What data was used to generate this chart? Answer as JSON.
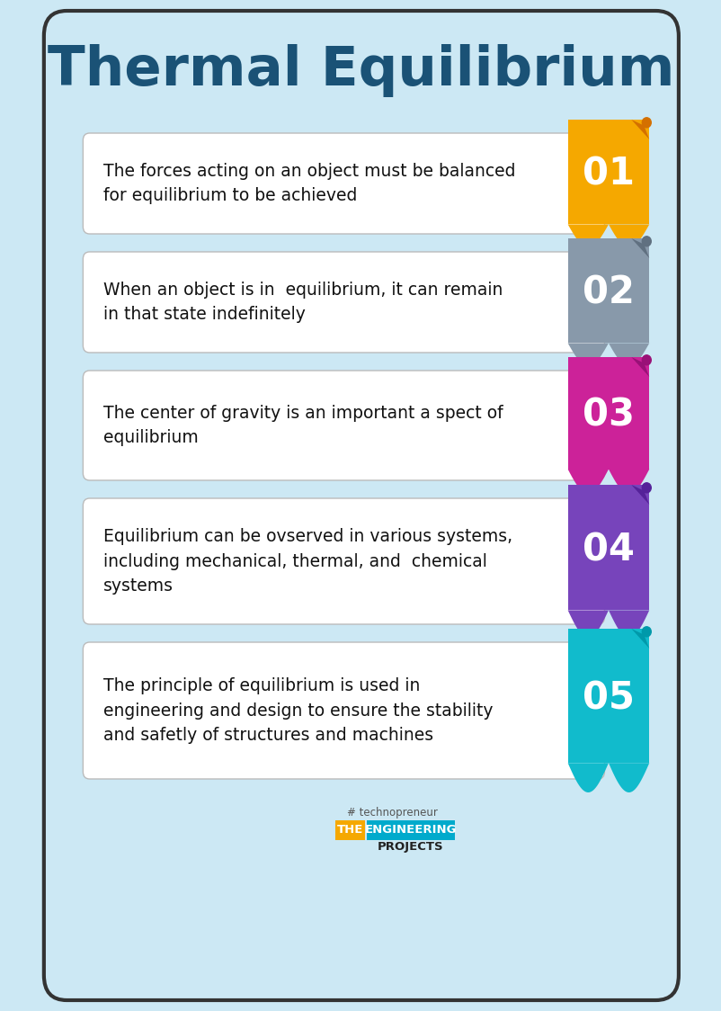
{
  "title": "Thermal Equilibrium",
  "title_color": "#1a5276",
  "bg_color": "#cce8f4",
  "card_bg": "white",
  "card_border": "#bbbbbb",
  "items": [
    {
      "number": "01",
      "color": "#f5a800",
      "dark_color": "#d47000",
      "curl_color": "#e8e0d0",
      "text": "The forces acting on an object must be balanced\nfor equilibrium to be achieved"
    },
    {
      "number": "02",
      "color": "#8899aa",
      "dark_color": "#607080",
      "curl_color": "#d8dde0",
      "text": "When an object is in  equilibrium, it can remain\nin that state indefinitely"
    },
    {
      "number": "03",
      "color": "#cc2299",
      "dark_color": "#991177",
      "curl_color": "#e0c8d8",
      "text": "The center of gravity is an important a spect of\nequilibrium"
    },
    {
      "number": "04",
      "color": "#7744bb",
      "dark_color": "#552299",
      "curl_color": "#d8d0e8",
      "text": "Equilibrium can be ovserved in various systems,\nincluding mechanical, thermal, and  chemical\nsystems"
    },
    {
      "number": "05",
      "color": "#11bbcc",
      "dark_color": "#0099aa",
      "curl_color": "#c8e8ee",
      "text": "The principle of equilibrium is used in\nengineering and design to ensure the stability\nand safetly of structures and machines"
    }
  ]
}
